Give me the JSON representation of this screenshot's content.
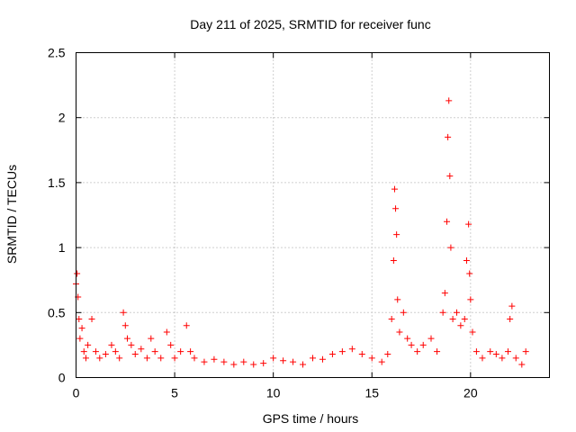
{
  "chart_data": {
    "type": "scatter",
    "title": "Day 211 of 2025, SRMTID for receiver func",
    "xlabel": "GPS time / hours",
    "ylabel": "SRMTID / TECUs",
    "xlim": [
      0,
      24
    ],
    "ylim": [
      0,
      2.5
    ],
    "grid": true,
    "legend": "none",
    "marker": "plus",
    "series_color": "#ff0000",
    "x_ticks": [
      0,
      5,
      10,
      15,
      20
    ],
    "x_tick_labels": [
      "0",
      "5",
      "10",
      "15",
      "20"
    ],
    "y_ticks": [
      0,
      0.5,
      1,
      1.5,
      2,
      2.5
    ],
    "y_tick_labels": [
      "0",
      "0.5",
      "1",
      "1.5",
      "2",
      "2.5"
    ],
    "series": [
      {
        "name": "SRMTID",
        "x": [
          0.0,
          0.05,
          0.1,
          0.15,
          0.2,
          0.3,
          0.4,
          0.5,
          0.6,
          0.8,
          1.0,
          1.2,
          1.5,
          1.8,
          2.0,
          2.2,
          2.4,
          2.5,
          2.6,
          2.8,
          3.0,
          3.3,
          3.6,
          3.8,
          4.0,
          4.3,
          4.6,
          4.8,
          5.0,
          5.3,
          5.6,
          5.8,
          6.0,
          6.5,
          7.0,
          7.5,
          8.0,
          8.5,
          9.0,
          9.5,
          10.0,
          10.5,
          11.0,
          11.5,
          12.0,
          12.5,
          13.0,
          13.5,
          14.0,
          14.5,
          15.0,
          15.5,
          15.8,
          16.0,
          16.1,
          16.15,
          16.2,
          16.25,
          16.3,
          16.4,
          16.6,
          16.8,
          17.0,
          17.3,
          17.6,
          18.0,
          18.3,
          18.6,
          18.7,
          18.8,
          18.85,
          18.9,
          18.95,
          19.0,
          19.1,
          19.3,
          19.5,
          19.7,
          19.8,
          19.9,
          19.95,
          20.0,
          20.1,
          20.3,
          20.6,
          21.0,
          21.3,
          21.6,
          21.9,
          22.0,
          22.1,
          22.3,
          22.6,
          22.8
        ],
        "y": [
          0.72,
          0.8,
          0.62,
          0.45,
          0.3,
          0.38,
          0.2,
          0.15,
          0.25,
          0.45,
          0.2,
          0.15,
          0.18,
          0.25,
          0.2,
          0.15,
          0.5,
          0.4,
          0.3,
          0.25,
          0.18,
          0.22,
          0.15,
          0.3,
          0.2,
          0.15,
          0.35,
          0.25,
          0.15,
          0.2,
          0.4,
          0.2,
          0.15,
          0.12,
          0.14,
          0.12,
          0.1,
          0.12,
          0.1,
          0.11,
          0.15,
          0.13,
          0.12,
          0.1,
          0.15,
          0.14,
          0.18,
          0.2,
          0.22,
          0.18,
          0.15,
          0.12,
          0.18,
          0.45,
          0.9,
          1.45,
          1.3,
          1.1,
          0.6,
          0.35,
          0.5,
          0.3,
          0.25,
          0.2,
          0.25,
          0.3,
          0.2,
          0.5,
          0.65,
          1.2,
          1.85,
          2.13,
          1.55,
          1.0,
          0.45,
          0.5,
          0.4,
          0.45,
          0.9,
          1.18,
          0.8,
          0.6,
          0.35,
          0.2,
          0.15,
          0.2,
          0.18,
          0.15,
          0.2,
          0.45,
          0.55,
          0.15,
          0.1,
          0.2
        ]
      }
    ]
  }
}
